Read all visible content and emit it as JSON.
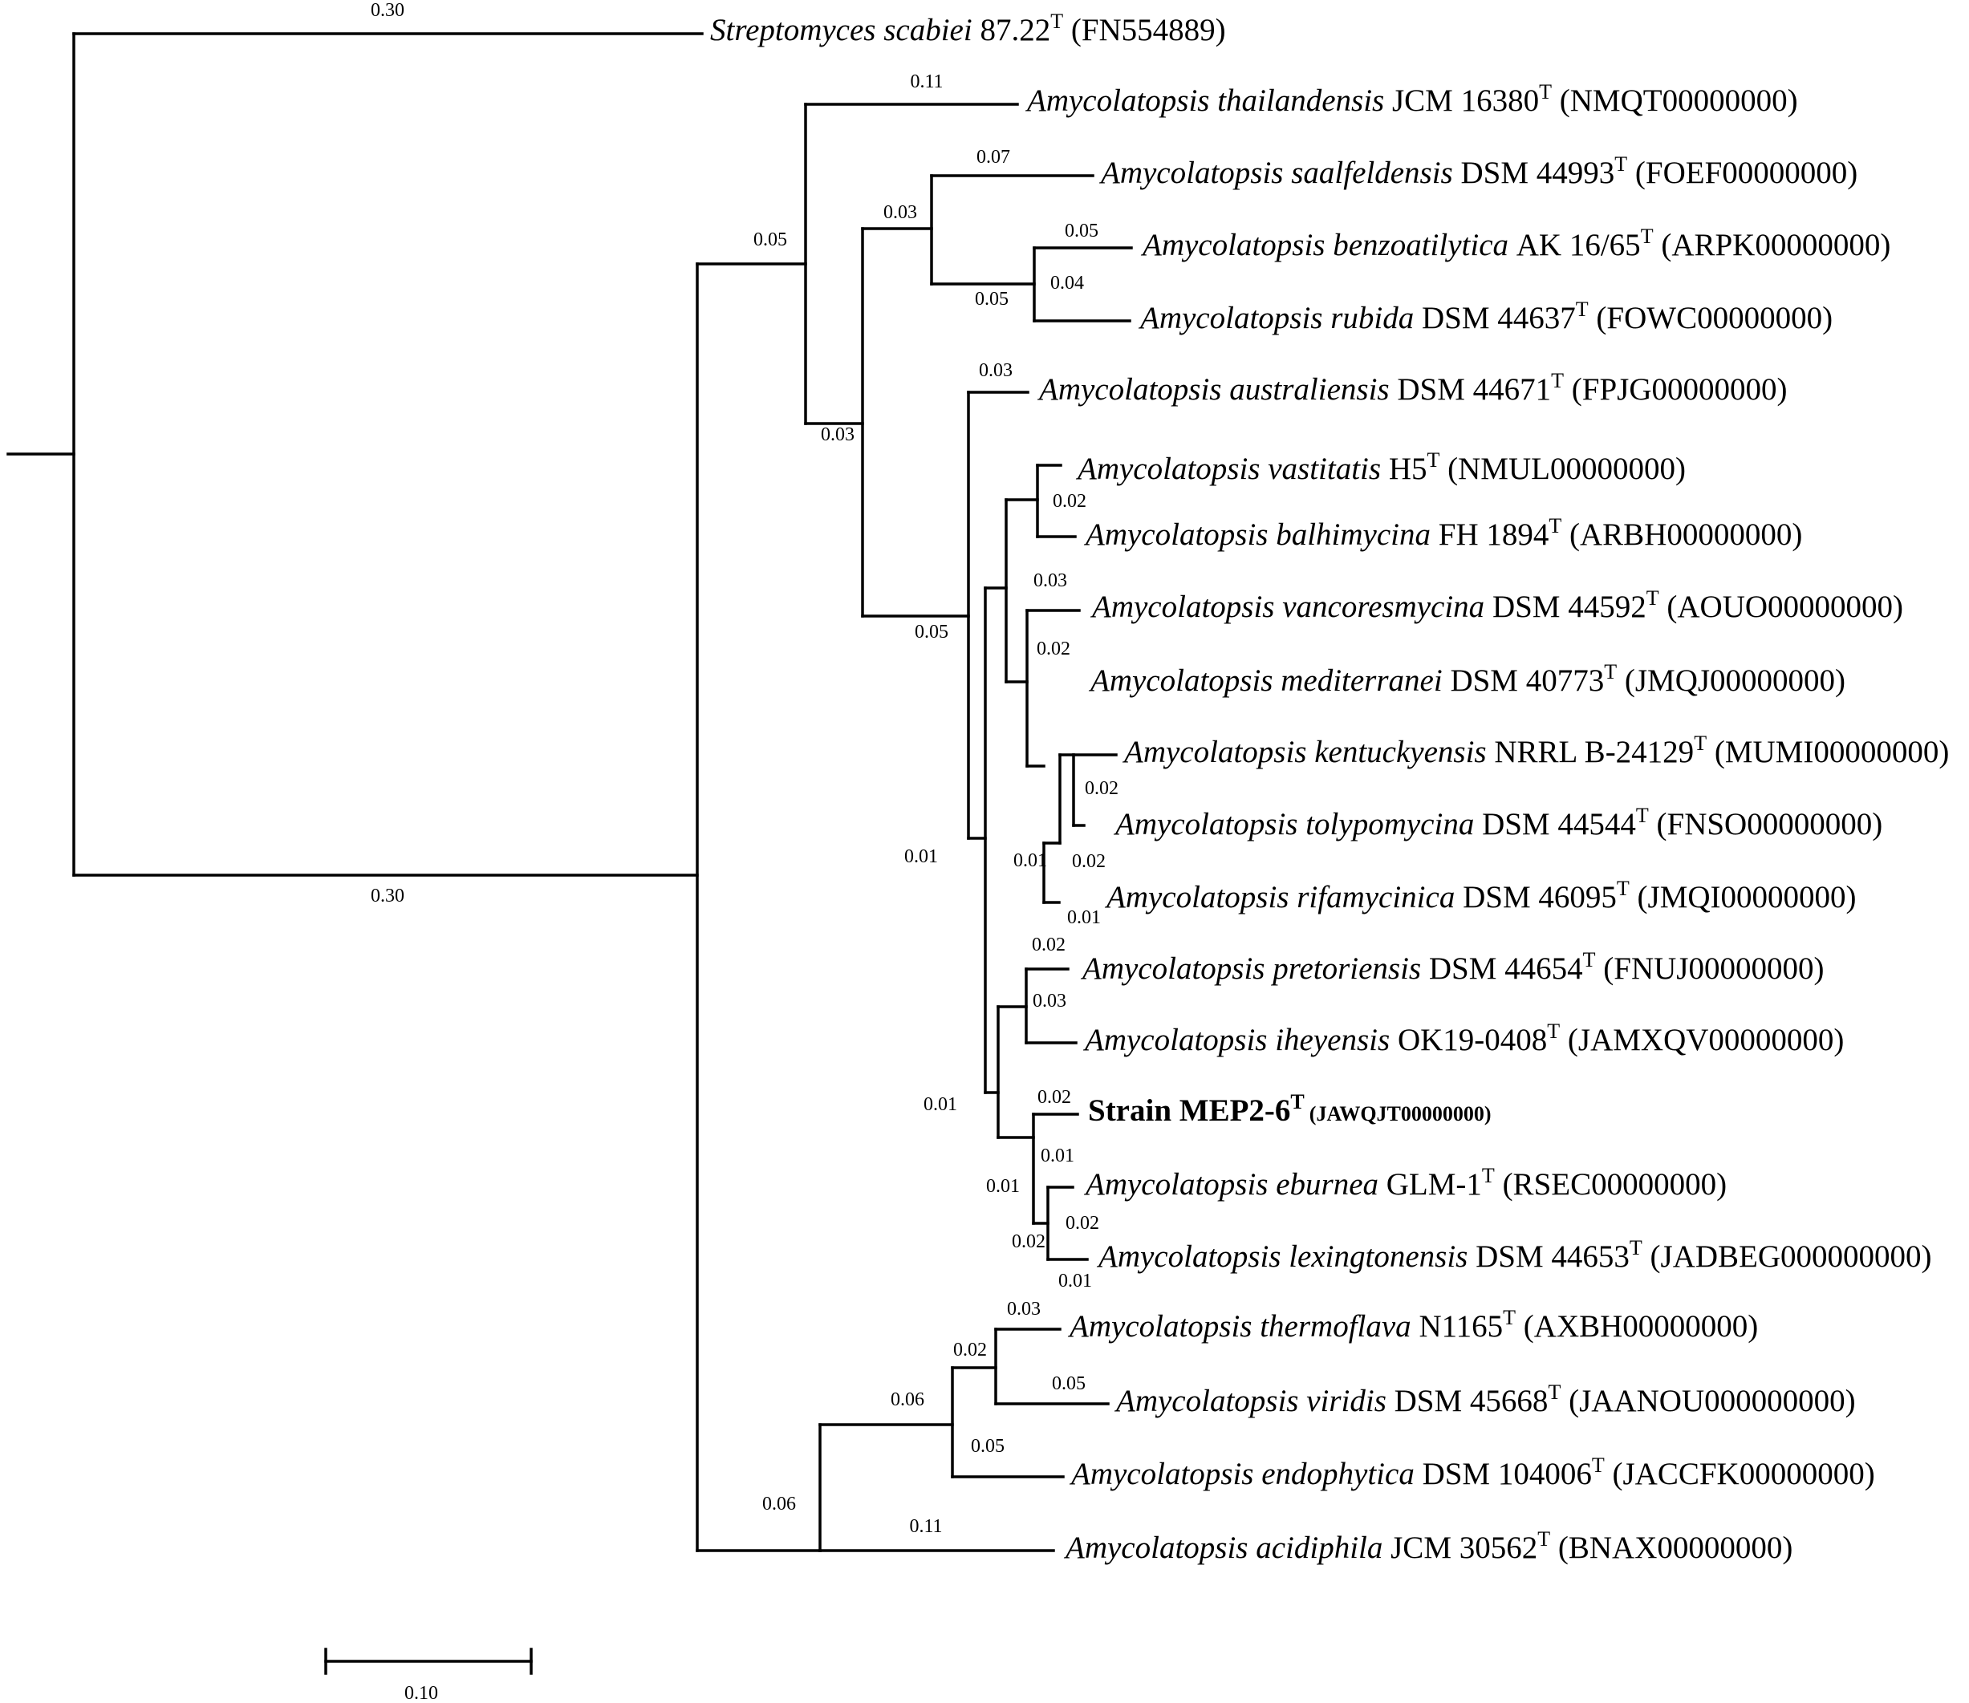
{
  "tree": {
    "leaves": [
      {
        "id": "s_scabiei",
        "species": "Streptomyces scabiei",
        "strain": "87.22",
        "type_mark": "T",
        "accession": "(FN554889)",
        "bold": false
      },
      {
        "id": "a_thailandensis",
        "species": "Amycolatopsis thailandensis",
        "strain": "JCM 16380",
        "type_mark": "T",
        "accession": "(NMQT00000000)",
        "bold": false
      },
      {
        "id": "a_saalfeldensis",
        "species": "Amycolatopsis saalfeldensis",
        "strain": "DSM 44993",
        "type_mark": "T",
        "accession": "(FOEF00000000)",
        "bold": false
      },
      {
        "id": "a_benzoatilytica",
        "species": "Amycolatopsis benzoatilytica",
        "strain": "AK 16/65",
        "type_mark": "T",
        "accession": "(ARPK00000000)",
        "bold": false
      },
      {
        "id": "a_rubida",
        "species": "Amycolatopsis rubida",
        "strain": "DSM 44637",
        "type_mark": "T",
        "accession": "(FOWC00000000)",
        "bold": false
      },
      {
        "id": "a_australiensis",
        "species": "Amycolatopsis australiensis",
        "strain": "DSM 44671",
        "type_mark": "T",
        "accession": "(FPJG00000000)",
        "bold": false
      },
      {
        "id": "a_vastitatis",
        "species": "Amycolatopsis vastitatis",
        "strain": "H5",
        "type_mark": "T",
        "accession": "(NMUL00000000)",
        "bold": false
      },
      {
        "id": "a_balhimycina",
        "species": "Amycolatopsis balhimycina",
        "strain": "FH 1894",
        "type_mark": "T",
        "accession": "(ARBH00000000)",
        "bold": false
      },
      {
        "id": "a_vancoresmycina",
        "species": "Amycolatopsis vancoresmycina",
        "strain": "DSM 44592",
        "type_mark": "T",
        "accession": "(AOUO00000000)",
        "bold": false
      },
      {
        "id": "a_mediterranei",
        "species": "Amycolatopsis mediterranei",
        "strain": "DSM 40773",
        "type_mark": "T",
        "accession": "(JMQJ00000000)",
        "bold": false
      },
      {
        "id": "a_kentuckyensis",
        "species": "Amycolatopsis kentuckyensis",
        "strain": "NRRL B-24129",
        "type_mark": "T",
        "accession": "(MUMI00000000)",
        "bold": false
      },
      {
        "id": "a_tolypomycina",
        "species": "Amycolatopsis tolypomycina",
        "strain": "DSM 44544",
        "type_mark": "T",
        "accession": "(FNSO00000000)",
        "bold": false
      },
      {
        "id": "a_rifamycinica",
        "species": "Amycolatopsis rifamycinica",
        "strain": "DSM 46095",
        "type_mark": "T",
        "accession": "(JMQI00000000)",
        "bold": false
      },
      {
        "id": "a_pretoriensis",
        "species": "Amycolatopsis pretoriensis",
        "strain": "DSM 44654",
        "type_mark": "T",
        "accession": "(FNUJ00000000)",
        "bold": false
      },
      {
        "id": "a_iheyensis",
        "species": "Amycolatopsis iheyensis",
        "strain": "OK19-0408",
        "type_mark": "T",
        "accession": "(JAMXQV00000000)",
        "bold": false
      },
      {
        "id": "mep2_6",
        "species": "",
        "strain": "Strain MEP2-6",
        "type_mark": "T",
        "accession": "(JAWQJT00000000)",
        "bold": true
      },
      {
        "id": "a_eburnea",
        "species": "Amycolatopsis eburnea",
        "strain": "GLM-1",
        "type_mark": "T",
        "accession": "(RSEC00000000)",
        "bold": false
      },
      {
        "id": "a_lexingtonensis",
        "species": "Amycolatopsis lexingtonensis",
        "strain": "DSM 44653",
        "type_mark": "T",
        "accession": "(JADBEG000000000)",
        "bold": false
      },
      {
        "id": "a_thermoflava",
        "species": "Amycolatopsis thermoflava",
        "strain": "N1165",
        "type_mark": "T",
        "accession": "(AXBH00000000)",
        "bold": false
      },
      {
        "id": "a_viridis",
        "species": "Amycolatopsis viridis",
        "strain": "DSM 45668",
        "type_mark": "T",
        "accession": "(JAANOU000000000)",
        "bold": false
      },
      {
        "id": "a_endophytica",
        "species": "Amycolatopsis endophytica",
        "strain": "DSM 104006",
        "type_mark": "T",
        "accession": "(JACCFK00000000)",
        "bold": false
      },
      {
        "id": "a_acidiphila",
        "species": "Amycolatopsis acidiphila",
        "strain": "JCM 30562",
        "type_mark": "T",
        "accession": "(BNAX00000000)",
        "bold": false
      }
    ],
    "branch_lengths": [
      {
        "id": "b_scabiei",
        "value": "0.30"
      },
      {
        "id": "b_amyco_stem",
        "value": "0.30"
      },
      {
        "id": "b_upper_clade",
        "value": "0.05"
      },
      {
        "id": "b_thailandensis",
        "value": "0.11"
      },
      {
        "id": "b_inner_upper",
        "value": "0.03"
      },
      {
        "id": "b_saal_group",
        "value": "0.03"
      },
      {
        "id": "b_saalfeldensis",
        "value": "0.07"
      },
      {
        "id": "b_benz_rubida",
        "value": "0.05"
      },
      {
        "id": "b_benzoatilytica",
        "value": "0.05"
      },
      {
        "id": "b_rubida",
        "value": "0.04"
      },
      {
        "id": "b_big_clade",
        "value": "0.05"
      },
      {
        "id": "b_australiensis",
        "value": "0.03"
      },
      {
        "id": "b_rest",
        "value": "0.01"
      },
      {
        "id": "b_vast_bal",
        "value": "0.02"
      },
      {
        "id": "b_vanc_group",
        "value": "0.03"
      },
      {
        "id": "b_med_group",
        "value": "0.02"
      },
      {
        "id": "b_kent_group",
        "value": "0.01"
      },
      {
        "id": "b_kent_toly",
        "value": "0.02"
      },
      {
        "id": "b_rifamycinica_node",
        "value": "0.02"
      },
      {
        "id": "b_rifamycinica",
        "value": "0.01"
      },
      {
        "id": "b_low_group",
        "value": "0.01"
      },
      {
        "id": "b_pretoriensis",
        "value": "0.02"
      },
      {
        "id": "b_iheyensis",
        "value": "0.03"
      },
      {
        "id": "b_mep_group",
        "value": "0.01"
      },
      {
        "id": "b_mep2_6",
        "value": "0.02"
      },
      {
        "id": "b_ebur_lex_inner",
        "value": "0.01"
      },
      {
        "id": "b_ebur_lex",
        "value": "0.02"
      },
      {
        "id": "b_lexingtonensis_node",
        "value": "0.02"
      },
      {
        "id": "b_lexingtonensis",
        "value": "0.01"
      },
      {
        "id": "b_lower_clade",
        "value": "0.06"
      },
      {
        "id": "b_thermo_group",
        "value": "0.06"
      },
      {
        "id": "b_thermo_viridis",
        "value": "0.02"
      },
      {
        "id": "b_thermoflava",
        "value": "0.03"
      },
      {
        "id": "b_viridis",
        "value": "0.05"
      },
      {
        "id": "b_endophytica",
        "value": "0.05"
      },
      {
        "id": "b_acidiphila",
        "value": "0.11"
      }
    ],
    "scale_bar": {
      "label": "0.10",
      "value": 0.1
    }
  }
}
